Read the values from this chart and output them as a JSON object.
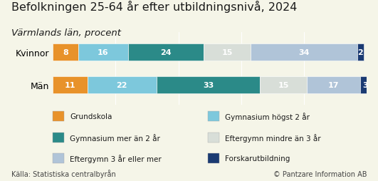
{
  "title": "Befolkningen 25-64 år efter utbildningsnivå, 2024",
  "subtitle": "Värmlands län, procent",
  "categories": [
    "Kvinnor",
    "Män"
  ],
  "series": [
    {
      "label": "Grundskola",
      "color": "#E8922A",
      "values": [
        8,
        11
      ]
    },
    {
      "label": "Gymnasium högst 2 år",
      "color": "#7DC8DC",
      "values": [
        16,
        22
      ]
    },
    {
      "label": "Gymnasium mer än 2 år",
      "color": "#2B8A88",
      "values": [
        24,
        33
      ]
    },
    {
      "label": "Eftergymn mindre än 3 år",
      "color": "#D8DED8",
      "values": [
        15,
        15
      ]
    },
    {
      "label": "Eftergymn 3 år eller mer",
      "color": "#B0C4D8",
      "values": [
        34,
        17
      ]
    },
    {
      "label": "Forskarutbildning",
      "color": "#1A3A72",
      "values": [
        2,
        3
      ]
    }
  ],
  "legend_col1": [
    0,
    2,
    4
  ],
  "legend_col2": [
    1,
    3,
    5
  ],
  "footer_left": "Källa: Statistiska centralbyrån",
  "footer_right": "© Pantzare Information AB",
  "background_color": "#F5F5E8",
  "plot_bg_color": "#F5F5E8",
  "bar_height": 0.52,
  "title_fontsize": 11.5,
  "subtitle_fontsize": 9.5,
  "label_fontsize": 8,
  "legend_fontsize": 7.5,
  "footer_fontsize": 7,
  "axis_label_fontsize": 9
}
